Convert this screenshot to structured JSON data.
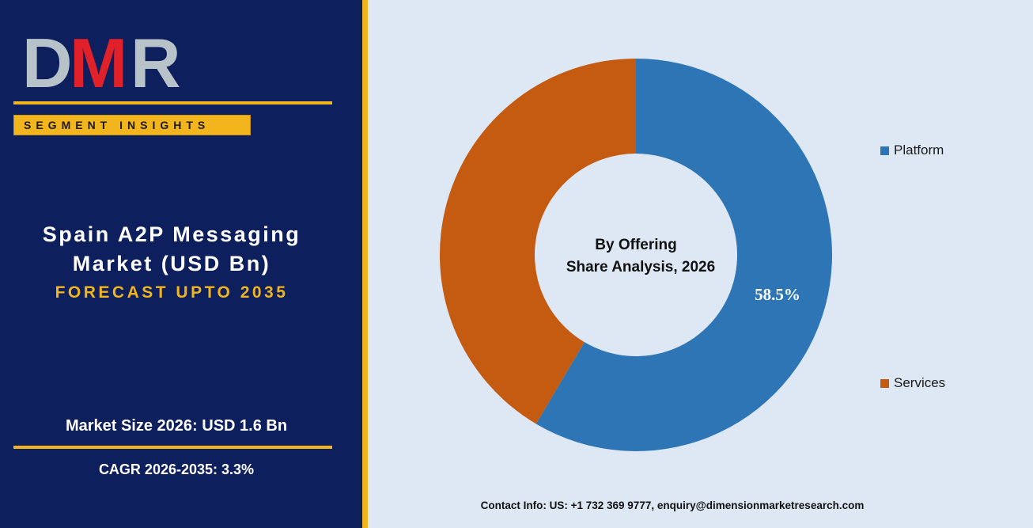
{
  "logo": {
    "text": "DMR",
    "letters": [
      "D",
      "M",
      "R"
    ]
  },
  "left": {
    "badge": "SEGMENT INSIGHTS",
    "title_line1": "Spain A2P Messaging",
    "title_line2": "Market (USD Bn)",
    "forecast": "FORECAST UPTO 2035",
    "market_size": "Market Size 2026: USD 1.6 Bn",
    "cagr": "CAGR 2026-2035: 3.3%"
  },
  "chart_data": {
    "type": "pie",
    "donut": true,
    "center_label_line1": "By Offering",
    "center_label_line2": "Share Analysis, 2026",
    "slices": [
      {
        "name": "Platform",
        "value": 58.5,
        "label": "58.5%",
        "color": "#2e75b6"
      },
      {
        "name": "Services",
        "value": 41.5,
        "label": "",
        "color": "#c55a11"
      }
    ],
    "legend_placement": "right"
  },
  "contact": "Contact Info: US: +1 732 369 9777, enquiry@dimensionmarketresearch.com",
  "colors": {
    "navy": "#0d1f5c",
    "gold": "#f2b51d",
    "background": "#dde8f4",
    "logo_red": "#e0212a",
    "logo_grey": "#b8c3c9"
  }
}
